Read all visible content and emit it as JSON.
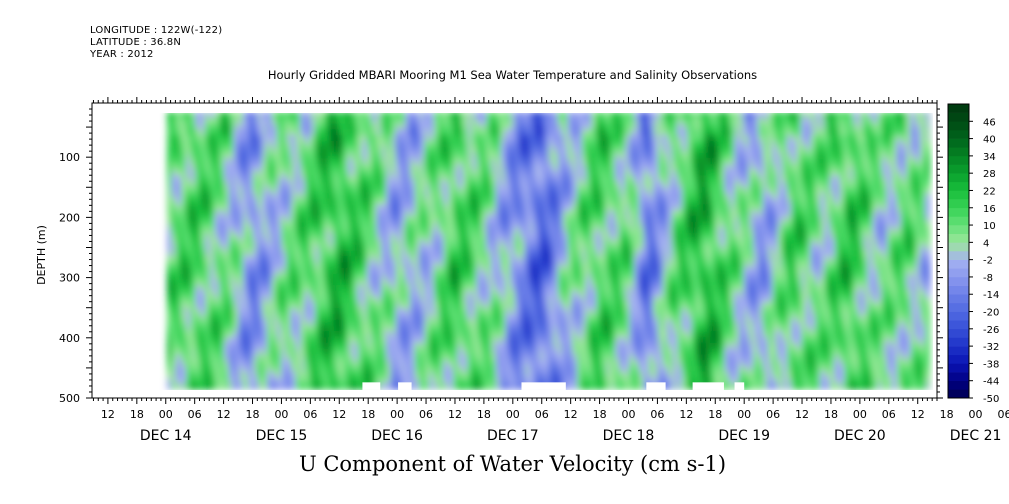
{
  "header": {
    "longitude": "LONGITUDE : 122W(-122)",
    "latitude": "LATITUDE : 36.8N",
    "year": "YEAR : 2012"
  },
  "chart_data": {
    "type": "heatmap",
    "title": "Hourly Gridded MBARI Mooring M1 Sea Water Temperature and Salinity Observations",
    "xlabel": "U Component of Water Velocity (cm s-1)",
    "ylabel": "DEPTH (m)",
    "y_ticks": [
      100,
      200,
      300,
      400,
      500
    ],
    "ylim": [
      500,
      10
    ],
    "data_depth_range": [
      25,
      485
    ],
    "x_hour_labels": [
      "12",
      "18",
      "00",
      "06",
      "12",
      "18",
      "00",
      "06",
      "12",
      "18",
      "00",
      "06",
      "12",
      "18",
      "00",
      "06",
      "12",
      "18",
      "00",
      "06",
      "12",
      "18",
      "00",
      "06",
      "12",
      "18",
      "00",
      "06",
      "12",
      "18",
      "00",
      "06"
    ],
    "x_day_labels": [
      "DEC 14",
      "DEC 15",
      "DEC 16",
      "DEC 17",
      "DEC 18",
      "DEC 19",
      "DEC 20",
      "DEC 21"
    ],
    "x_range_hours_from_dec14_00": [
      -15.3,
      160
    ],
    "data_time_range_hours_from_dec14_00": [
      0.2,
      158.5
    ],
    "colorbar": {
      "labels": [
        "46",
        "40",
        "34",
        "28",
        "22",
        "16",
        "10",
        "4",
        "-2",
        "-8",
        "-14",
        "-20",
        "-26",
        "-32",
        "-38",
        "-44",
        "-50"
      ],
      "range": [
        -50,
        52
      ],
      "step": 3
    },
    "gaps_near_bottom": [
      {
        "x0": 40.8,
        "x1": 44.5
      },
      {
        "x0": 48.2,
        "x1": 51.0
      },
      {
        "x0": 73.8,
        "x1": 83.0
      },
      {
        "x0": 99.7,
        "x1": 103.7
      },
      {
        "x0": 109.3,
        "x1": 115.8
      },
      {
        "x0": 118.0,
        "x1": 120.0
      }
    ],
    "band_profile": [
      {
        "t": 0,
        "v": 10
      },
      {
        "t": 6,
        "v": 14
      },
      {
        "t": 12,
        "v": 8
      },
      {
        "t": 18,
        "v": -10
      },
      {
        "t": 24,
        "v": 4
      },
      {
        "t": 30,
        "v": 12
      },
      {
        "t": 36,
        "v": 22
      },
      {
        "t": 42,
        "v": 10
      },
      {
        "t": 48,
        "v": -4
      },
      {
        "t": 54,
        "v": 2
      },
      {
        "t": 60,
        "v": 16
      },
      {
        "t": 66,
        "v": 8
      },
      {
        "t": 72,
        "v": -8
      },
      {
        "t": 78,
        "v": -20
      },
      {
        "t": 84,
        "v": 2
      },
      {
        "t": 90,
        "v": 14
      },
      {
        "t": 96,
        "v": 8
      },
      {
        "t": 100,
        "v": -16
      },
      {
        "t": 106,
        "v": 10
      },
      {
        "t": 112,
        "v": 24
      },
      {
        "t": 118,
        "v": 6
      },
      {
        "t": 124,
        "v": -6
      },
      {
        "t": 130,
        "v": 14
      },
      {
        "t": 136,
        "v": 6
      },
      {
        "t": 142,
        "v": 18
      },
      {
        "t": 148,
        "v": 4
      },
      {
        "t": 154,
        "v": 10
      },
      {
        "t": 158,
        "v": 2
      }
    ]
  }
}
